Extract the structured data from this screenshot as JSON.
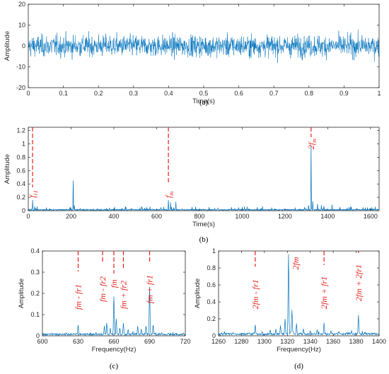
{
  "chart_data": [
    {
      "id": "a",
      "type": "line",
      "panel_label": "(a)",
      "xlabel": "Time(s)",
      "ylabel": "Amplitude",
      "xlim": [
        0,
        1
      ],
      "ylim": [
        -20,
        20
      ],
      "xticks": [
        0,
        0.1,
        0.2,
        0.3,
        0.4,
        0.5,
        0.6,
        0.7,
        0.8,
        0.9,
        1
      ],
      "yticks": [
        -20,
        -10,
        0,
        10,
        20
      ],
      "series": [
        {
          "description": "dense noisy vibration signal, amplitude mostly within about +/-10, peaks near +/-16",
          "color": "#0072bd",
          "envelope": [
            -16,
            16
          ],
          "typical": [
            -9,
            9
          ]
        }
      ]
    },
    {
      "id": "b",
      "type": "line",
      "panel_label": "(b)",
      "xlabel": "Time(s)",
      "ylabel": "Amplitude",
      "xlim": [
        0,
        1640
      ],
      "ylim": [
        0,
        1.25
      ],
      "xticks": [
        0,
        200,
        400,
        600,
        800,
        1000,
        1200,
        1400,
        1600
      ],
      "yticks": [
        0,
        0.2,
        0.4,
        0.6,
        0.8,
        1,
        1.2
      ],
      "peaks": [
        [
          0,
          0.02
        ],
        [
          20,
          0.16
        ],
        [
          30,
          0.06
        ],
        [
          198,
          0.05
        ],
        [
          210,
          0.45
        ],
        [
          215,
          0.08
        ],
        [
          380,
          0.04
        ],
        [
          530,
          0.06
        ],
        [
          620,
          0.05
        ],
        [
          655,
          0.16
        ],
        [
          665,
          0.12
        ],
        [
          690,
          0.13
        ],
        [
          1000,
          0.04
        ],
        [
          1292,
          0.05
        ],
        [
          1310,
          0.08
        ],
        [
          1322,
          0.98
        ],
        [
          1330,
          0.14
        ],
        [
          1352,
          0.1
        ],
        [
          1370,
          0.08
        ],
        [
          1382,
          0.07
        ],
        [
          1420,
          0.09
        ],
        [
          1500,
          0.05
        ],
        [
          1565,
          0.05
        ]
      ],
      "markers": [
        {
          "x": 20,
          "label_main": "f",
          "label_sub": "r1"
        },
        {
          "x": 655,
          "label_main": "f",
          "label_sub": "m"
        },
        {
          "x": 1322,
          "label_main": "2f",
          "label_sub": "m"
        }
      ],
      "color": "#0072bd"
    },
    {
      "id": "c",
      "type": "line",
      "panel_label": "(c)",
      "xlabel": "Frequency(Hz)",
      "ylabel": "Amplitude",
      "xlim": [
        600,
        720
      ],
      "ylim": [
        0,
        0.4
      ],
      "xticks": [
        600,
        630,
        660,
        690,
        720
      ],
      "yticks": [
        0,
        0.1,
        0.2,
        0.3,
        0.4
      ],
      "peaks": [
        [
          608,
          0.012
        ],
        [
          615,
          0.01
        ],
        [
          620,
          0.014
        ],
        [
          626,
          0.012
        ],
        [
          630,
          0.05
        ],
        [
          638,
          0.012
        ],
        [
          645,
          0.015
        ],
        [
          652,
          0.045
        ],
        [
          654,
          0.06
        ],
        [
          657,
          0.035
        ],
        [
          660,
          0.185
        ],
        [
          662,
          0.08
        ],
        [
          665,
          0.035
        ],
        [
          668,
          0.06
        ],
        [
          672,
          0.03
        ],
        [
          676,
          0.02
        ],
        [
          680,
          0.045
        ],
        [
          683,
          0.03
        ],
        [
          687,
          0.045
        ],
        [
          690,
          0.23
        ],
        [
          693,
          0.05
        ],
        [
          700,
          0.015
        ],
        [
          706,
          0.012
        ],
        [
          712,
          0.01
        ]
      ],
      "markers": [
        {
          "x": 630,
          "label": "f_m - f_r1"
        },
        {
          "x": 650.5,
          "label": "f_m - f_r2"
        },
        {
          "x": 660,
          "label": "f_m"
        },
        {
          "x": 668,
          "label": "f_m + f_r2"
        },
        {
          "x": 690,
          "label": "f_m + f_r1"
        }
      ],
      "color": "#0072bd"
    },
    {
      "id": "d",
      "type": "line",
      "panel_label": "(d)",
      "xlabel": "Frequency(Hz)",
      "ylabel": "Amplitude",
      "xlim": [
        1260,
        1400
      ],
      "ylim": [
        0,
        1
      ],
      "xticks": [
        1260,
        1280,
        1300,
        1320,
        1340,
        1360,
        1380,
        1400
      ],
      "yticks": [
        0,
        0.2,
        0.4,
        0.6,
        0.8,
        1
      ],
      "peaks": [
        [
          1265,
          0.03
        ],
        [
          1272,
          0.025
        ],
        [
          1280,
          0.03
        ],
        [
          1287,
          0.035
        ],
        [
          1292,
          0.13
        ],
        [
          1298,
          0.05
        ],
        [
          1305,
          0.07
        ],
        [
          1310,
          0.08
        ],
        [
          1314,
          0.12
        ],
        [
          1318,
          0.2
        ],
        [
          1321,
          0.96
        ],
        [
          1324,
          0.3
        ],
        [
          1328,
          0.14
        ],
        [
          1334,
          0.08
        ],
        [
          1340,
          0.06
        ],
        [
          1346,
          0.07
        ],
        [
          1352,
          0.15
        ],
        [
          1358,
          0.06
        ],
        [
          1365,
          0.05
        ],
        [
          1372,
          0.04
        ],
        [
          1376,
          0.06
        ],
        [
          1382,
          0.24
        ],
        [
          1388,
          0.04
        ],
        [
          1395,
          0.03
        ]
      ],
      "markers": [
        {
          "x": 1292,
          "label": "2f_m - f_r1"
        },
        {
          "x": 1321,
          "label": "2f_m"
        },
        {
          "x": 1352,
          "label": "2f_m + f_r1"
        },
        {
          "x": 1382,
          "label": "2f_m + 2f_r1"
        }
      ],
      "color": "#0072bd"
    }
  ]
}
